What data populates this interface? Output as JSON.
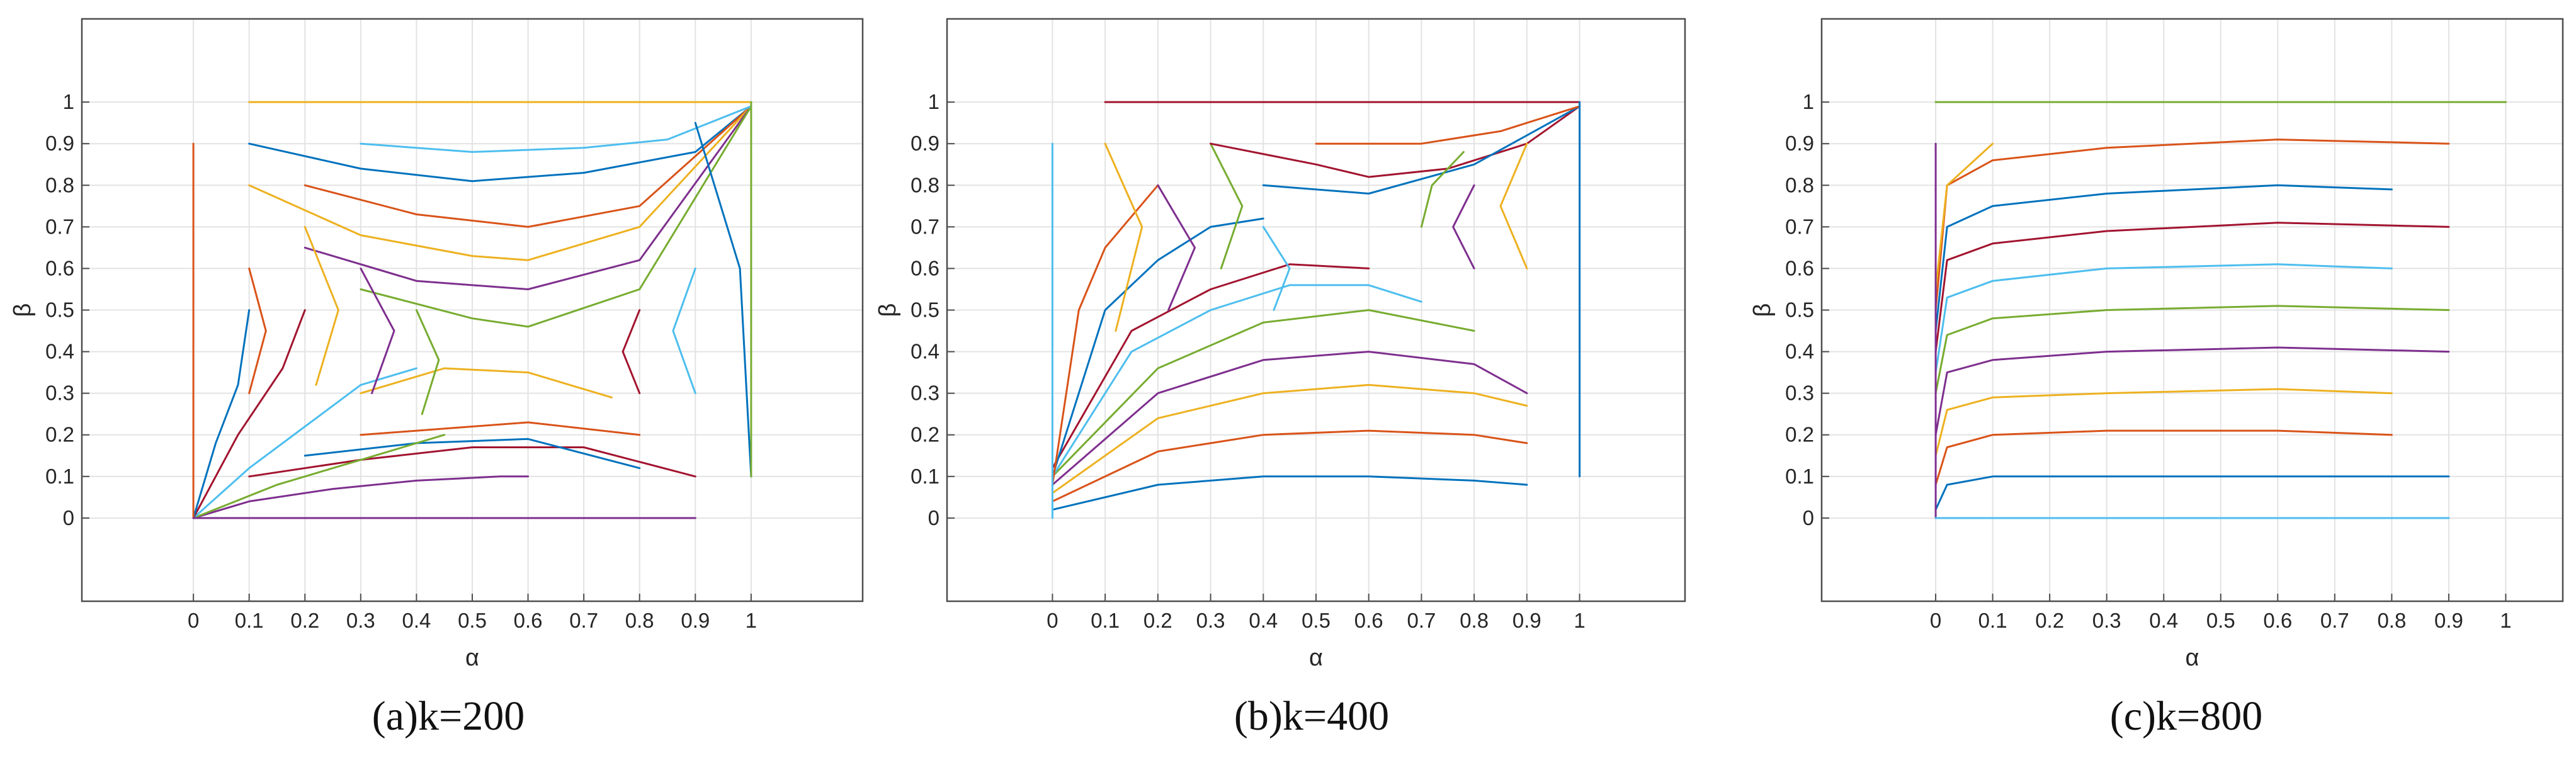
{
  "chart_data": [
    {
      "type": "line",
      "caption": "(a)k=200",
      "xlabel": "α",
      "ylabel": "β",
      "xlim": [
        -0.2,
        1.2
      ],
      "ylim": [
        -0.2,
        1.2
      ],
      "xticks": [
        "0",
        "0.1",
        "0.2",
        "0.3",
        "0.4",
        "0.5",
        "0.6",
        "0.7",
        "0.8",
        "0.9",
        "1"
      ],
      "yticks": [
        "0",
        "0.1",
        "0.2",
        "0.3",
        "0.4",
        "0.5",
        "0.6",
        "0.7",
        "0.8",
        "0.9",
        "1"
      ],
      "grid": true,
      "legend": "none",
      "series": [
        {
          "x": [
            0.1,
            0.3,
            0.5,
            0.7,
            0.9,
            1.0
          ],
          "y": [
            0.9,
            0.84,
            0.81,
            0.83,
            0.88,
            0.99
          ]
        },
        {
          "x": [
            0.2,
            0.4,
            0.6,
            0.8,
            1.0
          ],
          "y": [
            0.8,
            0.73,
            0.7,
            0.75,
            0.99
          ]
        },
        {
          "x": [
            0.1,
            0.3,
            0.5,
            0.6,
            0.8,
            1.0
          ],
          "y": [
            0.8,
            0.68,
            0.63,
            0.62,
            0.7,
            0.99
          ]
        },
        {
          "x": [
            0.2,
            0.4,
            0.6,
            0.8,
            1.0
          ],
          "y": [
            0.65,
            0.57,
            0.55,
            0.62,
            0.99
          ]
        },
        {
          "x": [
            0.3,
            0.5,
            0.6,
            0.8,
            1.0
          ],
          "y": [
            0.55,
            0.48,
            0.46,
            0.55,
            0.99
          ]
        },
        {
          "x": [
            0.3,
            0.5,
            0.7,
            0.85,
            1.0
          ],
          "y": [
            0.9,
            0.88,
            0.89,
            0.91,
            0.99
          ]
        },
        {
          "x": [
            0.1,
            0.3,
            0.5,
            0.7,
            0.9
          ],
          "y": [
            0.1,
            0.14,
            0.17,
            0.17,
            0.1
          ]
        },
        {
          "x": [
            0.2,
            0.4,
            0.6,
            0.8
          ],
          "y": [
            0.15,
            0.18,
            0.19,
            0.12
          ]
        },
        {
          "x": [
            0.3,
            0.5,
            0.6,
            0.8
          ],
          "y": [
            0.2,
            0.22,
            0.23,
            0.2
          ]
        },
        {
          "x": [
            0.3,
            0.45,
            0.6,
            0.75
          ],
          "y": [
            0.3,
            0.36,
            0.35,
            0.29
          ]
        },
        {
          "x": [
            0.0,
            0.1,
            0.25,
            0.4,
            0.55,
            0.6
          ],
          "y": [
            0.0,
            0.04,
            0.07,
            0.09,
            0.1,
            0.1
          ]
        },
        {
          "x": [
            0.0,
            0.15,
            0.3,
            0.45
          ],
          "y": [
            0.0,
            0.08,
            0.14,
            0.2
          ]
        },
        {
          "x": [
            0.0,
            0.1,
            0.2,
            0.3,
            0.4
          ],
          "y": [
            0.0,
            0.12,
            0.22,
            0.32,
            0.36
          ]
        },
        {
          "x": [
            0.0,
            0.08,
            0.16,
            0.2
          ],
          "y": [
            0.0,
            0.2,
            0.36,
            0.5
          ]
        },
        {
          "x": [
            0.0,
            0.04,
            0.08,
            0.1
          ],
          "y": [
            0.0,
            0.18,
            0.32,
            0.5
          ]
        },
        {
          "x": [
            0.1,
            0.13,
            0.1
          ],
          "y": [
            0.6,
            0.45,
            0.3
          ]
        },
        {
          "x": [
            0.2,
            0.26,
            0.22
          ],
          "y": [
            0.7,
            0.5,
            0.32
          ]
        },
        {
          "x": [
            0.3,
            0.36,
            0.32
          ],
          "y": [
            0.6,
            0.45,
            0.3
          ]
        },
        {
          "x": [
            0.4,
            0.44,
            0.41
          ],
          "y": [
            0.5,
            0.38,
            0.25
          ]
        },
        {
          "x": [
            0.9,
            0.86,
            0.9
          ],
          "y": [
            0.6,
            0.45,
            0.3
          ]
        },
        {
          "x": [
            0.8,
            0.77,
            0.8
          ],
          "y": [
            0.5,
            0.4,
            0.3
          ]
        },
        {
          "x": [
            1.0,
            0.98,
            0.9
          ],
          "y": [
            0.1,
            0.6,
            0.95
          ]
        },
        {
          "x": [
            0.0,
            0.0
          ],
          "y": [
            0.0,
            0.9
          ]
        },
        {
          "x": [
            0.1,
            1.0
          ],
          "y": [
            1.0,
            1.0
          ]
        },
        {
          "x": [
            0.0,
            0.9
          ],
          "y": [
            0.0,
            0.0
          ]
        },
        {
          "x": [
            1.0,
            1.0
          ],
          "y": [
            0.1,
            1.0
          ]
        }
      ]
    },
    {
      "type": "line",
      "caption": "(b)k=400",
      "xlabel": "α",
      "ylabel": "β",
      "xlim": [
        -0.2,
        1.2
      ],
      "ylim": [
        -0.2,
        1.2
      ],
      "xticks": [
        "0",
        "0.1",
        "0.2",
        "0.3",
        "0.4",
        "0.5",
        "0.6",
        "0.7",
        "0.8",
        "0.9",
        "1"
      ],
      "yticks": [
        "0",
        "0.1",
        "0.2",
        "0.3",
        "0.4",
        "0.5",
        "0.6",
        "0.7",
        "0.8",
        "0.9",
        "1"
      ],
      "grid": true,
      "legend": "none",
      "series": [
        {
          "x": [
            0.0,
            0.2,
            0.4,
            0.6,
            0.8,
            0.9
          ],
          "y": [
            0.02,
            0.08,
            0.1,
            0.1,
            0.09,
            0.08
          ]
        },
        {
          "x": [
            0.0,
            0.2,
            0.4,
            0.6,
            0.8,
            0.9
          ],
          "y": [
            0.04,
            0.16,
            0.2,
            0.21,
            0.2,
            0.18
          ]
        },
        {
          "x": [
            0.0,
            0.2,
            0.4,
            0.6,
            0.8,
            0.9
          ],
          "y": [
            0.06,
            0.24,
            0.3,
            0.32,
            0.3,
            0.27
          ]
        },
        {
          "x": [
            0.0,
            0.2,
            0.4,
            0.6,
            0.8,
            0.9
          ],
          "y": [
            0.08,
            0.3,
            0.38,
            0.4,
            0.37,
            0.3
          ]
        },
        {
          "x": [
            0.0,
            0.2,
            0.4,
            0.6,
            0.8
          ],
          "y": [
            0.1,
            0.36,
            0.47,
            0.5,
            0.45
          ]
        },
        {
          "x": [
            0.0,
            0.15,
            0.3,
            0.45,
            0.6,
            0.7
          ],
          "y": [
            0.1,
            0.4,
            0.5,
            0.56,
            0.56,
            0.52
          ]
        },
        {
          "x": [
            0.0,
            0.15,
            0.3,
            0.45,
            0.6
          ],
          "y": [
            0.12,
            0.45,
            0.55,
            0.61,
            0.6
          ]
        },
        {
          "x": [
            0.0,
            0.1,
            0.2,
            0.3,
            0.4
          ],
          "y": [
            0.1,
            0.5,
            0.62,
            0.7,
            0.72
          ]
        },
        {
          "x": [
            0.0,
            0.05,
            0.1,
            0.2
          ],
          "y": [
            0.08,
            0.5,
            0.65,
            0.8
          ]
        },
        {
          "x": [
            0.1,
            0.17,
            0.12
          ],
          "y": [
            0.9,
            0.7,
            0.45
          ]
        },
        {
          "x": [
            0.2,
            0.27,
            0.22
          ],
          "y": [
            0.8,
            0.65,
            0.5
          ]
        },
        {
          "x": [
            0.3,
            0.36,
            0.32
          ],
          "y": [
            0.9,
            0.75,
            0.6
          ]
        },
        {
          "x": [
            0.4,
            0.45,
            0.42
          ],
          "y": [
            0.7,
            0.6,
            0.5
          ]
        },
        {
          "x": [
            0.3,
            0.5,
            0.6,
            0.75,
            0.9,
            1.0
          ],
          "y": [
            0.9,
            0.85,
            0.82,
            0.84,
            0.9,
            0.99
          ]
        },
        {
          "x": [
            0.4,
            0.6,
            0.8,
            1.0
          ],
          "y": [
            0.8,
            0.78,
            0.85,
            0.99
          ]
        },
        {
          "x": [
            0.5,
            0.7,
            0.85,
            1.0
          ],
          "y": [
            0.9,
            0.9,
            0.93,
            0.99
          ]
        },
        {
          "x": [
            0.9,
            0.85,
            0.9
          ],
          "y": [
            0.9,
            0.75,
            0.6
          ]
        },
        {
          "x": [
            0.8,
            0.76,
            0.8
          ],
          "y": [
            0.8,
            0.7,
            0.6
          ]
        },
        {
          "x": [
            0.7,
            0.72,
            0.78
          ],
          "y": [
            0.7,
            0.8,
            0.88
          ]
        },
        {
          "x": [
            0.0,
            0.0
          ],
          "y": [
            0.0,
            0.9
          ]
        },
        {
          "x": [
            0.1,
            1.0
          ],
          "y": [
            1.0,
            1.0
          ]
        },
        {
          "x": [
            1.0,
            1.0
          ],
          "y": [
            0.1,
            1.0
          ]
        }
      ]
    },
    {
      "type": "line",
      "caption": "(c)k=800",
      "xlabel": "α",
      "ylabel": "β",
      "xlim": [
        -0.2,
        1.1
      ],
      "ylim": [
        -0.2,
        1.2
      ],
      "xticks": [
        "0",
        "0.1",
        "0.2",
        "0.3",
        "0.4",
        "0.5",
        "0.6",
        "0.7",
        "0.8",
        "0.9",
        "1"
      ],
      "yticks": [
        "0",
        "0.1",
        "0.2",
        "0.3",
        "0.4",
        "0.5",
        "0.6",
        "0.7",
        "0.8",
        "0.9",
        "1"
      ],
      "grid": true,
      "legend": "none",
      "series": [
        {
          "x": [
            0.0,
            0.02,
            0.1,
            0.3,
            0.6,
            0.9
          ],
          "y": [
            0.02,
            0.08,
            0.1,
            0.1,
            0.1,
            0.1
          ]
        },
        {
          "x": [
            0.0,
            0.02,
            0.1,
            0.3,
            0.6,
            0.8
          ],
          "y": [
            0.08,
            0.17,
            0.2,
            0.21,
            0.21,
            0.2
          ]
        },
        {
          "x": [
            0.0,
            0.02,
            0.1,
            0.3,
            0.6,
            0.8
          ],
          "y": [
            0.15,
            0.26,
            0.29,
            0.3,
            0.31,
            0.3
          ]
        },
        {
          "x": [
            0.0,
            0.02,
            0.1,
            0.3,
            0.6,
            0.9
          ],
          "y": [
            0.2,
            0.35,
            0.38,
            0.4,
            0.41,
            0.4
          ]
        },
        {
          "x": [
            0.0,
            0.02,
            0.1,
            0.3,
            0.6,
            0.9
          ],
          "y": [
            0.3,
            0.44,
            0.48,
            0.5,
            0.51,
            0.5
          ]
        },
        {
          "x": [
            0.0,
            0.02,
            0.1,
            0.3,
            0.6,
            0.8
          ],
          "y": [
            0.35,
            0.53,
            0.57,
            0.6,
            0.61,
            0.6
          ]
        },
        {
          "x": [
            0.0,
            0.02,
            0.1,
            0.3,
            0.6,
            0.9
          ],
          "y": [
            0.4,
            0.62,
            0.66,
            0.69,
            0.71,
            0.7
          ]
        },
        {
          "x": [
            0.0,
            0.02,
            0.1,
            0.3,
            0.6,
            0.8
          ],
          "y": [
            0.45,
            0.7,
            0.75,
            0.78,
            0.8,
            0.79
          ]
        },
        {
          "x": [
            0.0,
            0.02,
            0.1,
            0.3,
            0.6,
            0.9
          ],
          "y": [
            0.5,
            0.8,
            0.86,
            0.89,
            0.91,
            0.9
          ]
        },
        {
          "x": [
            0.0,
            0.02,
            0.1
          ],
          "y": [
            0.55,
            0.8,
            0.9
          ]
        },
        {
          "x": [
            0.0,
            0.0
          ],
          "y": [
            0.0,
            0.9
          ]
        },
        {
          "x": [
            0.0,
            1.0
          ],
          "y": [
            1.0,
            1.0
          ]
        },
        {
          "x": [
            0.0,
            0.9
          ],
          "y": [
            0.0,
            0.0
          ]
        }
      ]
    }
  ]
}
